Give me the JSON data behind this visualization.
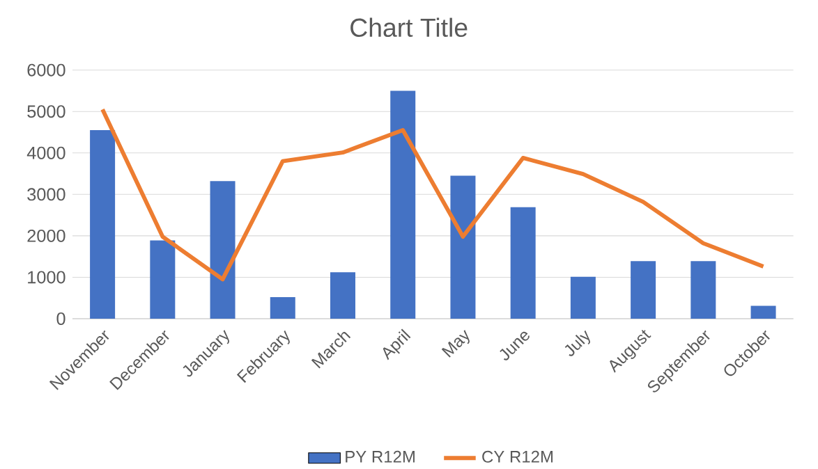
{
  "chart_data": {
    "type": "bar",
    "title": "Chart Title",
    "categories": [
      "November",
      "December",
      "January",
      "February",
      "March",
      "April",
      "May",
      "June",
      "July",
      "August",
      "September",
      "October"
    ],
    "series": [
      {
        "name": "PY R12M",
        "color": "#4472c4",
        "values": [
          4550,
          1890,
          3320,
          520,
          1120,
          5500,
          3450,
          2690,
          1010,
          1390,
          1390,
          310
        ]
      },
      {
        "name": "CY R12M",
        "type": "line",
        "color": "#ed7d31",
        "values": [
          5050,
          1980,
          950,
          3800,
          4010,
          4550,
          1980,
          3880,
          3490,
          2820,
          1820,
          1260
        ]
      }
    ],
    "ylim": [
      0,
      6000
    ],
    "yticks": [
      0,
      1000,
      2000,
      3000,
      4000,
      5000,
      6000
    ],
    "grid": "y",
    "legend": "bottom",
    "marker": "none"
  }
}
